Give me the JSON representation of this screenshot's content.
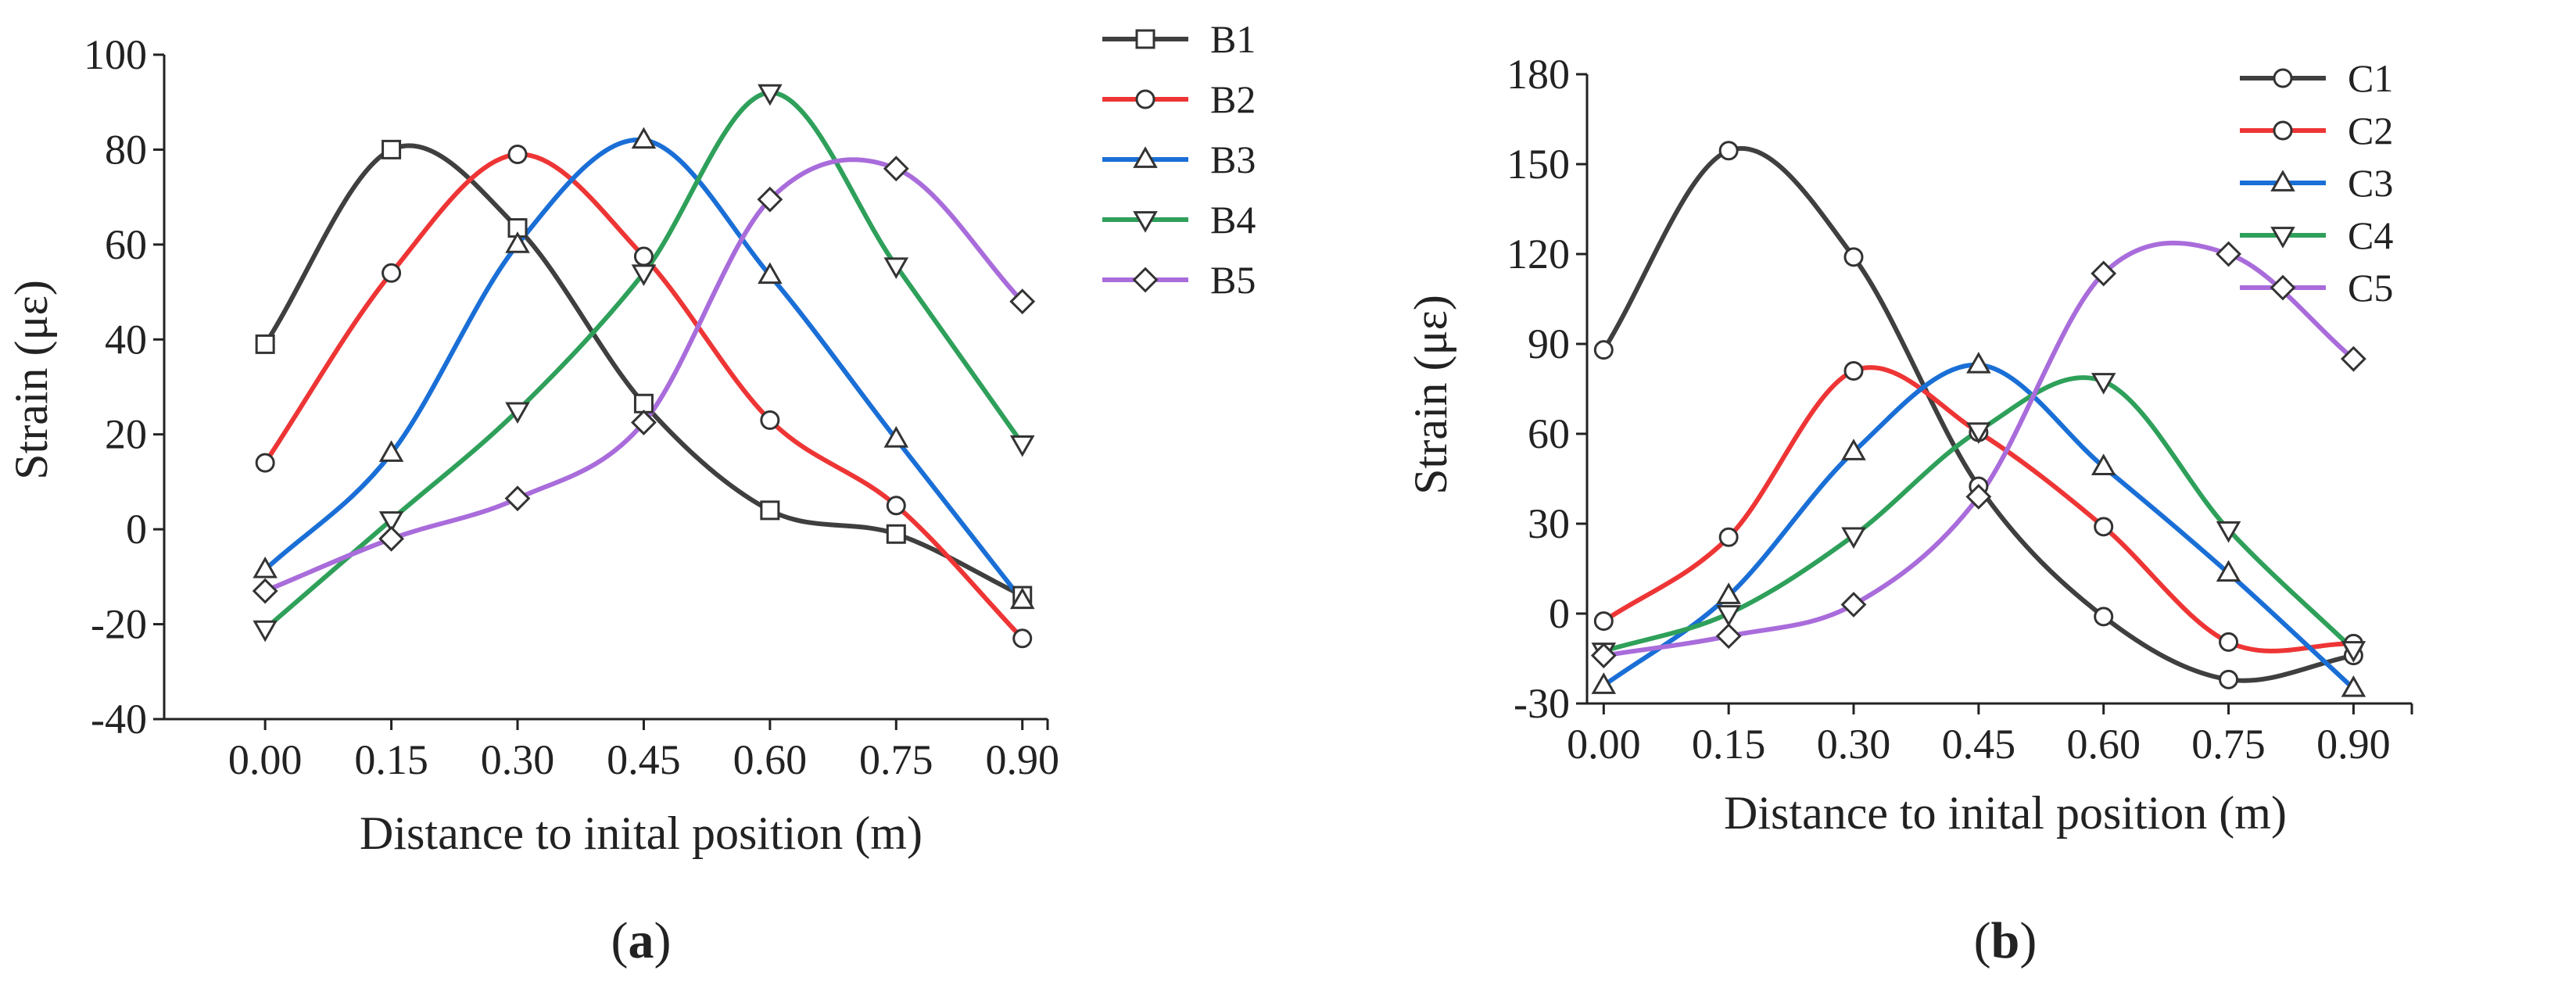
{
  "chart_data": [
    {
      "type": "line",
      "panel_label": {
        "open": "(",
        "letter": "a",
        "close": ")"
      },
      "title": "",
      "xlabel": "Distance to inital position (m)",
      "ylabel": "Strain (με)",
      "x": [
        0.0,
        0.15,
        0.3,
        0.45,
        0.6,
        0.75,
        0.9
      ],
      "x_tick_labels": [
        "0.00",
        "0.15",
        "0.30",
        "0.45",
        "0.60",
        "0.75",
        "0.90"
      ],
      "xlim": [
        -0.12,
        0.93
      ],
      "ylim": [
        -40,
        100
      ],
      "y_ticks": [
        -40,
        -20,
        0,
        20,
        40,
        60,
        80,
        100
      ],
      "y_tick_labels": [
        "-40",
        "-20",
        "0",
        "20",
        "40",
        "60",
        "80",
        "100"
      ],
      "legend_position": "top-right",
      "series": [
        {
          "name": "B1",
          "color": "#3f3f3f",
          "marker": "square",
          "values": [
            39,
            80,
            63.5,
            26.5,
            4,
            -1,
            -14
          ]
        },
        {
          "name": "B2",
          "color": "#ee3535",
          "marker": "circle",
          "values": [
            14,
            54,
            79,
            57.5,
            23,
            5,
            -23
          ]
        },
        {
          "name": "B3",
          "color": "#1a6fd6",
          "marker": "triangle-up",
          "values": [
            -8.5,
            16,
            60,
            82,
            53.5,
            19,
            -15
          ]
        },
        {
          "name": "B4",
          "color": "#2ea05a",
          "marker": "triangle-down",
          "values": [
            -21,
            2,
            25,
            54,
            92,
            55.5,
            18
          ]
        },
        {
          "name": "B5",
          "color": "#a96cdb",
          "marker": "diamond",
          "values": [
            -13,
            -2,
            6.5,
            22.5,
            69.5,
            76,
            48
          ]
        }
      ]
    },
    {
      "type": "line",
      "panel_label": {
        "open": "(",
        "letter": "b",
        "close": ")"
      },
      "title": "",
      "xlabel": "Distance to inital position (m)",
      "ylabel": "Strain (με)",
      "x": [
        0.0,
        0.15,
        0.3,
        0.45,
        0.6,
        0.75,
        0.9
      ],
      "x_tick_labels": [
        "0.00",
        "0.15",
        "0.30",
        "0.45",
        "0.60",
        "0.75",
        "0.90"
      ],
      "xlim": [
        -0.02,
        0.97
      ],
      "ylim": [
        -30,
        180
      ],
      "y_ticks": [
        -30,
        0,
        30,
        60,
        90,
        120,
        150,
        180
      ],
      "y_tick_labels": [
        "-30",
        "0",
        "30",
        "60",
        "90",
        "120",
        "150",
        "180"
      ],
      "legend_position": "top-right",
      "series": [
        {
          "name": "C1",
          "color": "#3f3f3f",
          "marker": "circle",
          "values": [
            88,
            154.5,
            119,
            42.5,
            -1,
            -22,
            -14
          ]
        },
        {
          "name": "C2",
          "color": "#ee3535",
          "marker": "circle",
          "values": [
            -2.5,
            25.5,
            81,
            60.5,
            29,
            -9.5,
            -10
          ]
        },
        {
          "name": "C3",
          "color": "#1a6fd6",
          "marker": "triangle-up",
          "values": [
            -24,
            6,
            54,
            83,
            49,
            13.5,
            -25
          ]
        },
        {
          "name": "C4",
          "color": "#2ea05a",
          "marker": "triangle-down",
          "values": [
            -12.5,
            0,
            26,
            61,
            77.5,
            28,
            -12
          ]
        },
        {
          "name": "C5",
          "color": "#a96cdb",
          "marker": "diamond",
          "values": [
            -14,
            -7.5,
            3,
            39,
            113.5,
            120,
            85
          ]
        }
      ]
    }
  ]
}
